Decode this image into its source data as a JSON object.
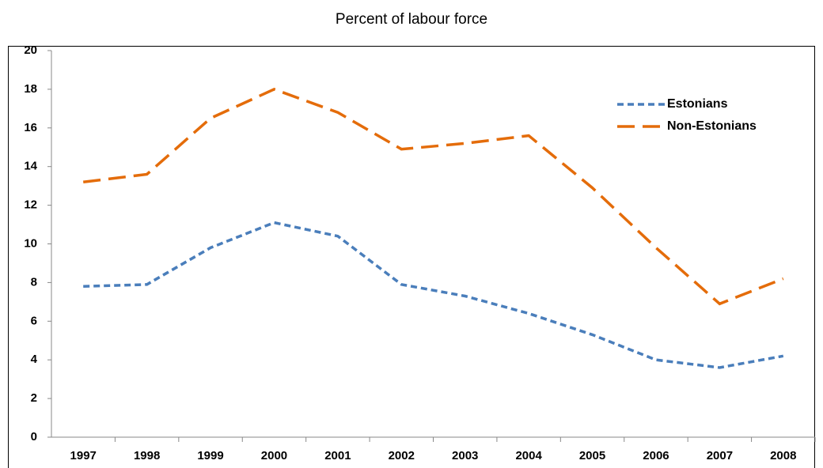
{
  "chart_data": {
    "type": "line",
    "title": "Percent of labour force",
    "categories": [
      "1997",
      "1998",
      "1999",
      "2000",
      "2001",
      "2002",
      "2003",
      "2004",
      "2005",
      "2006",
      "2007",
      "2008"
    ],
    "series": [
      {
        "name": "Estonians",
        "color": "#4a7ebb",
        "dash": "short",
        "values": [
          7.8,
          7.9,
          9.8,
          11.1,
          10.4,
          7.9,
          7.3,
          6.4,
          5.3,
          4.0,
          3.6,
          4.2
        ]
      },
      {
        "name": "Non-Estonians",
        "color": "#e46c0a",
        "dash": "long",
        "values": [
          13.2,
          13.6,
          16.5,
          18.0,
          16.8,
          14.9,
          15.2,
          15.6,
          12.9,
          9.8,
          6.9,
          8.2
        ]
      }
    ],
    "ylim": [
      0,
      20
    ],
    "yticks": [
      0,
      2,
      4,
      6,
      8,
      10,
      12,
      14,
      16,
      18,
      20
    ],
    "grid": false,
    "legend": "upper right"
  }
}
